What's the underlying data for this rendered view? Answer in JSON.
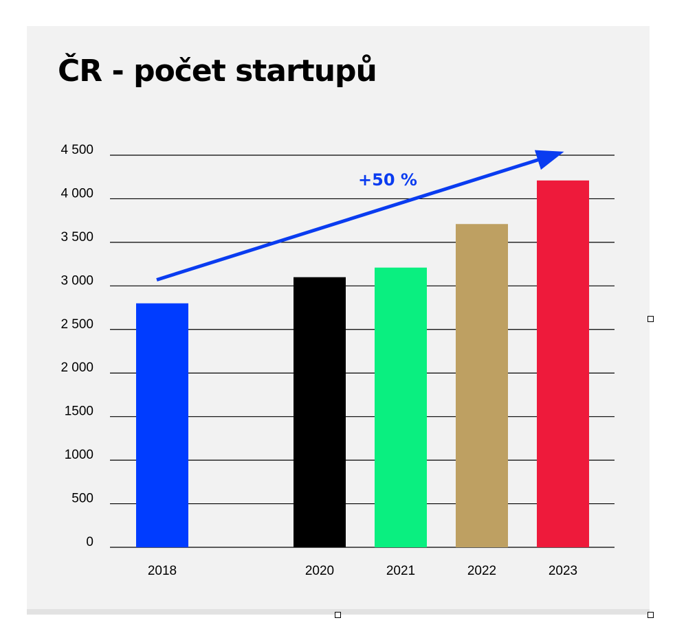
{
  "chart_data": {
    "type": "bar",
    "title": "ČR - počet startupů",
    "xlabel": "",
    "ylabel": "",
    "categories": [
      "2018",
      "2020",
      "2021",
      "2022",
      "2023"
    ],
    "values": [
      2800,
      3100,
      3210,
      3710,
      4210
    ],
    "colors": [
      "#003cff",
      "#000000",
      "#0aef80",
      "#bea062",
      "#ee1a3b"
    ],
    "ylim": [
      0,
      4500
    ],
    "yticks": [
      0,
      500,
      1000,
      1500,
      2000,
      2500,
      3000,
      3500,
      4000,
      4500
    ],
    "ytick_labels": [
      "0",
      "500",
      "1000",
      "1500",
      "2 000",
      "2 500",
      "3 000",
      "3 500",
      "4 000",
      "4 500"
    ],
    "grid": true,
    "annotation": {
      "text": "+50 %",
      "color": "#0a3cf0",
      "from": {
        "category": "2018",
        "value": 3070
      },
      "to": {
        "category": "2023",
        "value": 4540
      }
    }
  }
}
